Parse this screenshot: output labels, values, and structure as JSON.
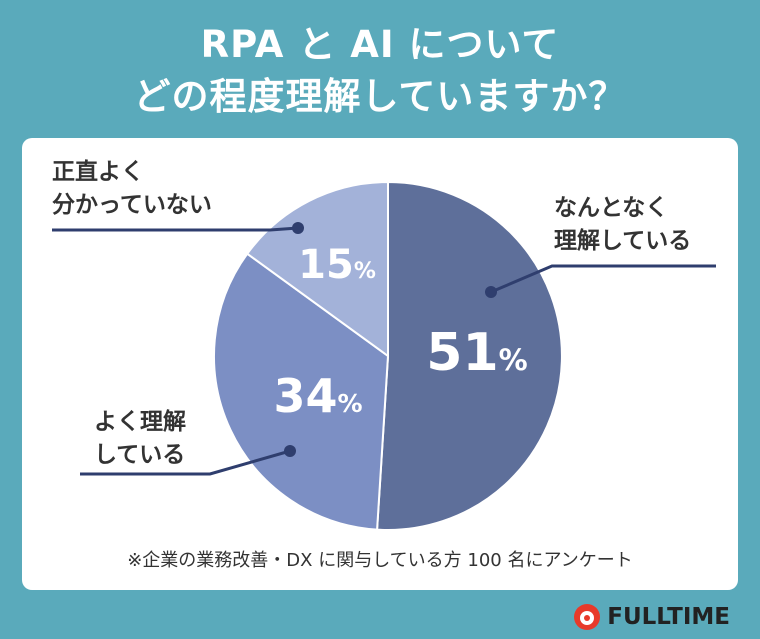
{
  "title": {
    "line1": "RPA と AI について",
    "line2": "どの程度理解していますか？"
  },
  "chart_data": {
    "type": "pie",
    "slices": [
      {
        "label": "なんとなく\n理解している",
        "value": 51,
        "display": "51",
        "color": "#5e6f9a"
      },
      {
        "label": "よく理解\nしている",
        "value": 34,
        "display": "34",
        "color": "#7c8fc4"
      },
      {
        "label": "正直よく\n分かっていない",
        "value": 15,
        "display": "15",
        "color": "#a3b2d9"
      }
    ],
    "unit": "%"
  },
  "labels": {
    "somewhat_line1": "なんとなく",
    "somewhat_line2": "理解している",
    "well_line1": "よく理解",
    "well_line2": "している",
    "honestly_line1": "正直よく",
    "honestly_line2": "分かっていない"
  },
  "footnote": "※企業の業務改善・DX に関与している方 100 名にアンケート",
  "brand": {
    "name": "FULLTIME",
    "accent": "#e83a2a"
  }
}
